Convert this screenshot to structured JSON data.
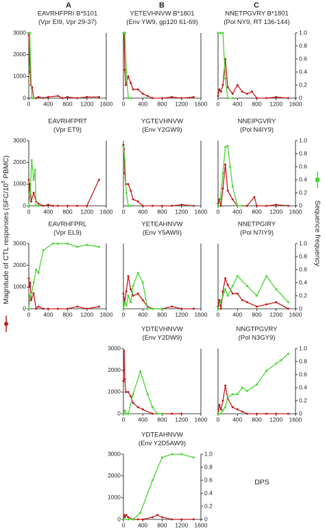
{
  "column_labels": [
    "A",
    "B",
    "C"
  ],
  "y_label": [
    "Magnitude of CTL responses (SFC/10",
    "6",
    " PBMC)"
  ],
  "y2_label": "Sequence frequency",
  "note": "DPS",
  "chart_data": [
    {
      "type": "line",
      "title": [
        "EAVRHFPRI B*5101",
        "(Vpr EI9, Vpr 29-37)"
      ],
      "xlim": [
        0,
        1600
      ],
      "xticks": [
        0,
        400,
        800,
        1200,
        1600
      ],
      "ylim": [
        0,
        3000
      ],
      "yticks": [
        0,
        1000,
        2000,
        3000
      ],
      "y2lim": [
        0,
        1
      ],
      "series": [
        {
          "color": "#c0191b",
          "x": [
            0,
            14,
            28,
            42,
            70,
            100,
            150,
            200,
            300,
            400,
            600,
            700,
            800,
            1000,
            1200,
            1450
          ],
          "values": [
            2900,
            1800,
            1200,
            600,
            500,
            0,
            0,
            50,
            0,
            50,
            100,
            0,
            50,
            0,
            50,
            50
          ]
        },
        {
          "color": "#44d62c",
          "axis": "y2",
          "x": [
            0,
            20,
            60,
            100
          ],
          "values": [
            1,
            1,
            0,
            0
          ]
        }
      ]
    },
    {
      "type": "line",
      "title": [
        "YETEVHNVW  B*1801",
        "(Env YW9, gp120 61-69)"
      ],
      "xlim": [
        0,
        1600
      ],
      "xticks": [
        0,
        400,
        800,
        1200,
        1600
      ],
      "ylim": [
        0,
        3000
      ],
      "y2lim": [
        0,
        1
      ],
      "series": [
        {
          "color": "#c0191b",
          "x": [
            0,
            14,
            28,
            50,
            100,
            150,
            200,
            300,
            400,
            500,
            600,
            800,
            1000,
            1200,
            1450
          ],
          "values": [
            3000,
            3000,
            1300,
            600,
            1000,
            700,
            400,
            400,
            200,
            100,
            0,
            0,
            50,
            0,
            50
          ]
        },
        {
          "color": "#44d62c",
          "axis": "y2",
          "x": [
            0,
            30,
            60,
            100,
            150
          ],
          "values": [
            1,
            1,
            0.4,
            0,
            0
          ]
        }
      ]
    },
    {
      "type": "line",
      "title": [
        "NNETPGVRY B*1801",
        "(Pol NY9, RT 136-144)"
      ],
      "xlim": [
        0,
        1600
      ],
      "xticks": [
        0,
        400,
        800,
        1200,
        1600
      ],
      "ylim": [
        0,
        3000
      ],
      "y2lim": [
        0,
        1
      ],
      "y2ticks": [
        0,
        0.2,
        0.4,
        0.6,
        0.8,
        {
          "value": 1,
          "label": "1.0"
        }
      ],
      "series": [
        {
          "color": "#c0191b",
          "x": [
            0,
            28,
            60,
            100,
            150,
            200,
            300,
            400,
            500,
            600,
            700,
            800,
            1000,
            1200,
            1450
          ],
          "values": [
            100,
            400,
            300,
            600,
            1800,
            500,
            200,
            600,
            300,
            200,
            300,
            0,
            0,
            50,
            0
          ]
        },
        {
          "color": "#44d62c",
          "axis": "y2",
          "x": [
            0,
            50,
            100,
            150,
            200,
            300
          ],
          "values": [
            1,
            1,
            1,
            0.3,
            0,
            0
          ]
        }
      ]
    },
    {
      "type": "line",
      "title": [
        "EAVRHFPRT",
        "(Vpr ET9)"
      ],
      "xlim": [
        0,
        1600
      ],
      "xticks": [
        0,
        400,
        800,
        1200,
        1600
      ],
      "ylim": [
        0,
        3000
      ],
      "yticks": [
        0,
        1000,
        2000,
        3000
      ],
      "y2lim": [
        0,
        1
      ],
      "series": [
        {
          "color": "#c0191b",
          "x": [
            0,
            14,
            28,
            50,
            100,
            150,
            200,
            300,
            400,
            500,
            600,
            800,
            1000,
            1200,
            1450
          ],
          "values": [
            1200,
            700,
            1000,
            200,
            600,
            200,
            100,
            0,
            50,
            0,
            0,
            0,
            0,
            0,
            1200
          ]
        },
        {
          "color": "#44d62c",
          "axis": "y2",
          "x": [
            0,
            30,
            60,
            100,
            130,
            150,
            200
          ],
          "values": [
            0,
            0.2,
            0.7,
            0.4,
            0.55,
            0,
            0
          ]
        }
      ]
    },
    {
      "type": "line",
      "title": [
        "YGTEVHNVW",
        "(Env Y2GW9)"
      ],
      "xlim": [
        0,
        1600
      ],
      "xticks": [
        0,
        400,
        800,
        1200,
        1600
      ],
      "ylim": [
        0,
        3000
      ],
      "y2lim": [
        0,
        1
      ],
      "series": [
        {
          "color": "#c0191b",
          "x": [
            0,
            14,
            28,
            50,
            100,
            150,
            200,
            300,
            400,
            600,
            800,
            1000,
            1200,
            1450
          ],
          "values": [
            2800,
            2600,
            1500,
            1000,
            1000,
            700,
            300,
            200,
            0,
            0,
            0,
            0,
            50,
            0
          ]
        },
        {
          "color": "#44d62c",
          "axis": "y2",
          "x": [
            0,
            30,
            60,
            100,
            150
          ],
          "values": [
            0.9,
            0.7,
            0.2,
            0,
            0
          ]
        }
      ]
    },
    {
      "type": "line",
      "title": [
        "NNEIPGVRY",
        "(Pol N4IY9)"
      ],
      "xlim": [
        0,
        1600
      ],
      "xticks": [
        0,
        400,
        800,
        1200,
        1600
      ],
      "ylim": [
        0,
        3000
      ],
      "y2lim": [
        0,
        1
      ],
      "y2ticks": [
        0,
        0.2,
        0.4,
        0.6,
        0.8,
        {
          "value": 1,
          "label": "1.0"
        }
      ],
      "series": [
        {
          "color": "#c0191b",
          "x": [
            0,
            28,
            60,
            100,
            150,
            200,
            300,
            400,
            500,
            600,
            750,
            800,
            1000,
            1200,
            1450
          ],
          "values": [
            100,
            300,
            0,
            800,
            1900,
            700,
            300,
            0,
            0,
            0,
            400,
            0,
            0,
            50,
            0
          ]
        },
        {
          "color": "#44d62c",
          "axis": "y2",
          "x": [
            0,
            50,
            100,
            150,
            200,
            250,
            300,
            400,
            500
          ],
          "values": [
            0,
            0.1,
            0.5,
            0.9,
            0.92,
            0.6,
            0.3,
            0,
            0
          ]
        }
      ]
    },
    {
      "type": "line",
      "title": [
        "EAVRHFPRL",
        "(Vpr EL9)"
      ],
      "xlim": [
        0,
        1600
      ],
      "xticks": [
        0,
        400,
        800,
        1200,
        1600
      ],
      "ylim": [
        0,
        3000
      ],
      "yticks": [
        0,
        1000,
        2000,
        3000
      ],
      "y2lim": [
        0,
        1
      ],
      "series": [
        {
          "color": "#c0191b",
          "x": [
            0,
            14,
            28,
            50,
            100,
            150,
            200,
            300,
            400,
            600,
            800,
            1000,
            1200,
            1450
          ],
          "values": [
            1400,
            1000,
            1200,
            400,
            700,
            0,
            100,
            0,
            0,
            0,
            0,
            100,
            0,
            100
          ]
        },
        {
          "color": "#44d62c",
          "axis": "y2",
          "x": [
            0,
            28,
            60,
            100,
            150,
            200,
            300,
            500,
            600,
            800,
            1000,
            1200,
            1450
          ],
          "values": [
            0,
            0.2,
            0.25,
            0.4,
            0.6,
            0.55,
            0.9,
            1,
            1,
            1,
            0.95,
            0.98,
            0.95
          ]
        }
      ]
    },
    {
      "type": "line",
      "title": [
        "YETEAHNVW",
        "(Env Y5AW9)"
      ],
      "xlim": [
        0,
        1600
      ],
      "xticks": [
        0,
        400,
        800,
        1200,
        1600
      ],
      "ylim": [
        0,
        3000
      ],
      "y2lim": [
        0,
        1
      ],
      "series": [
        {
          "color": "#c0191b",
          "x": [
            0,
            28,
            60,
            100,
            150,
            200,
            300,
            400,
            500,
            600,
            800,
            1000,
            1200,
            1450
          ],
          "values": [
            700,
            300,
            800,
            1500,
            900,
            600,
            700,
            400,
            100,
            0,
            0,
            100,
            0,
            0
          ]
        },
        {
          "color": "#44d62c",
          "axis": "y2",
          "x": [
            0,
            30,
            60,
            100,
            150,
            200,
            300,
            400,
            500,
            600,
            800
          ],
          "values": [
            0,
            0.1,
            0.05,
            0.2,
            0.1,
            0.35,
            0.55,
            0.4,
            0,
            0,
            0
          ]
        }
      ]
    },
    {
      "type": "line",
      "title": [
        "NNETPGIRY",
        "(Pol N7IY9)"
      ],
      "xlim": [
        0,
        1600
      ],
      "xticks": [
        0,
        400,
        800,
        1200,
        1600
      ],
      "ylim": [
        0,
        3000
      ],
      "y2lim": [
        0,
        1
      ],
      "y2ticks": [
        0,
        0.2,
        0.4,
        0.6,
        0.8,
        {
          "value": 1,
          "label": "1.0"
        }
      ],
      "series": [
        {
          "color": "#c0191b",
          "x": [
            0,
            28,
            60,
            100,
            150,
            200,
            300,
            400,
            500,
            600,
            800,
            1000,
            1200,
            1450
          ],
          "values": [
            100,
            400,
            0,
            800,
            1400,
            1100,
            700,
            700,
            400,
            300,
            100,
            200,
            300,
            0
          ]
        },
        {
          "color": "#44d62c",
          "axis": "y2",
          "x": [
            0,
            50,
            100,
            150,
            200,
            300,
            400,
            600,
            800,
            1000,
            1200,
            1450
          ],
          "values": [
            0,
            0.1,
            0.2,
            0.3,
            0.2,
            0.35,
            0.5,
            0.35,
            0.2,
            0.5,
            0.3,
            0.1
          ]
        }
      ]
    },
    {
      "type": "line",
      "title": [
        "YDTEVHNVW",
        "(Env Y2DW9)"
      ],
      "xlim": [
        0,
        1600
      ],
      "xticks": [
        0,
        400,
        800,
        1200,
        1600
      ],
      "ylim": [
        0,
        3000
      ],
      "yticks": [
        0,
        1000,
        2000,
        3000
      ],
      "y2lim": [
        0,
        1
      ],
      "series": [
        {
          "color": "#c0191b",
          "x": [
            0,
            14,
            28,
            50,
            100,
            150,
            200,
            300,
            400,
            600,
            800,
            1000,
            1200
          ],
          "values": [
            1500,
            2900,
            1600,
            1000,
            1000,
            800,
            500,
            300,
            200,
            0,
            0,
            0,
            0
          ]
        },
        {
          "color": "#44d62c",
          "axis": "y2",
          "x": [
            0,
            30,
            60,
            100,
            200,
            350,
            500,
            600,
            700,
            800
          ],
          "values": [
            0,
            0.05,
            0,
            0,
            0.3,
            0.65,
            0.3,
            0.1,
            0,
            0
          ]
        }
      ]
    },
    {
      "type": "line",
      "title": [
        "NNGTPGVRY",
        "(Pol  N3GY9)"
      ],
      "xlim": [
        0,
        1600
      ],
      "xticks": [
        0,
        400,
        800,
        1200,
        1600
      ],
      "ylim": [
        0,
        3000
      ],
      "y2lim": [
        0,
        1
      ],
      "y2ticks": [
        0,
        0.2,
        0.4,
        0.6,
        0.8,
        {
          "value": 1,
          "label": "1.0"
        }
      ],
      "series": [
        {
          "color": "#c0191b",
          "x": [
            0,
            28,
            60,
            100,
            150,
            200,
            300,
            400,
            500,
            600,
            800,
            1000,
            1200,
            1450
          ],
          "values": [
            0,
            400,
            200,
            600,
            1300,
            700,
            300,
            200,
            100,
            0,
            0,
            0,
            0,
            0
          ]
        },
        {
          "color": "#44d62c",
          "axis": "y2",
          "x": [
            0,
            50,
            100,
            150,
            200,
            300,
            400,
            500,
            600,
            800,
            1000,
            1200,
            1300,
            1450
          ],
          "values": [
            0,
            0,
            0.05,
            0.1,
            0.25,
            0.3,
            0.3,
            0.4,
            0.35,
            0.45,
            0.66,
            0.77,
            0.82,
            0.92
          ]
        }
      ]
    },
    {
      "type": "line",
      "title": [
        "YDTEAHNVW",
        "(Env Y2D5AW9)"
      ],
      "xlim": [
        0,
        1600
      ],
      "xticks": [
        0,
        400,
        800,
        1200,
        1600
      ],
      "ylim": [
        0,
        3000
      ],
      "yticks": [
        0,
        1000,
        2000,
        3000
      ],
      "y2lim": [
        0,
        1
      ],
      "y2ticks": [
        0,
        0.2,
        0.4,
        0.6,
        0.8,
        {
          "value": 1,
          "label": "1.0"
        }
      ],
      "series": [
        {
          "color": "#c0191b",
          "x": [
            0,
            14,
            28,
            60,
            100,
            200,
            300,
            400,
            600,
            700,
            800,
            1000,
            1200,
            1450
          ],
          "values": [
            0,
            200,
            100,
            200,
            100,
            0,
            0,
            0,
            100,
            200,
            100,
            0,
            0,
            0
          ]
        },
        {
          "color": "#44d62c",
          "axis": "y2",
          "x": [
            0,
            100,
            200,
            350,
            600,
            800,
            1000,
            1200,
            1450
          ],
          "values": [
            0,
            0,
            0,
            0.1,
            0.6,
            0.95,
            1,
            1,
            0.95
          ]
        }
      ]
    }
  ]
}
